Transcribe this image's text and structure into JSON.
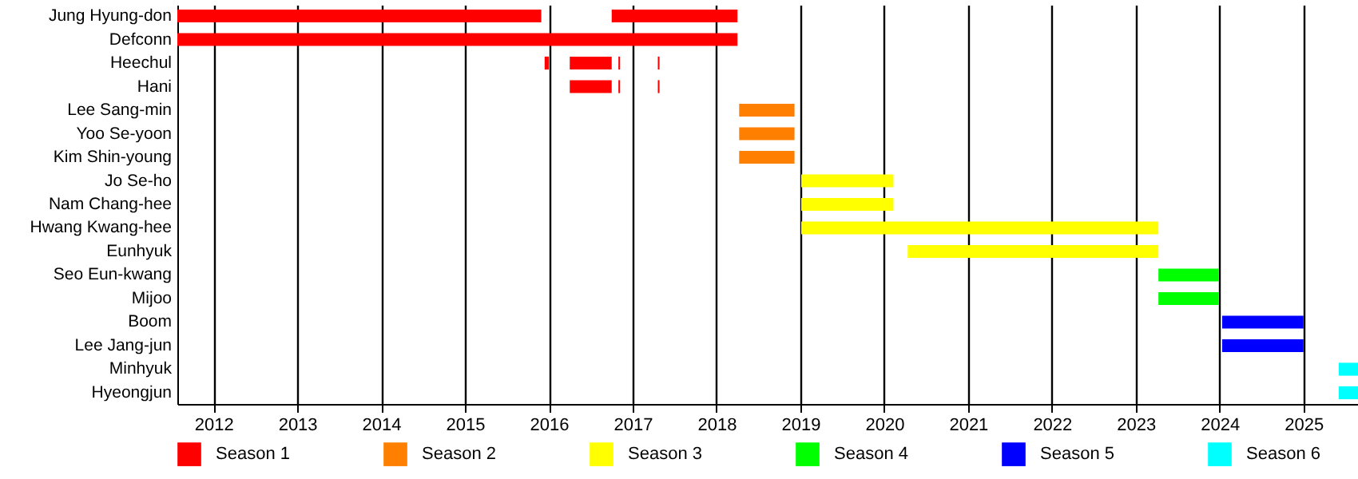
{
  "chart_data": {
    "type": "bar",
    "orientation": "horizontal",
    "categories": [
      "Jung Hyung-don",
      "Defconn",
      "Heechul",
      "Hani",
      "Lee Sang-min",
      "Yoo Se-yoon",
      "Kim Shin-young",
      "Jo Se-ho",
      "Nam Chang-hee",
      "Hwang Kwang-hee",
      "Eunhyuk",
      "Seo Eun-kwang",
      "Mijoo",
      "Boom",
      "Lee Jang-jun",
      "Minhyuk",
      "Hyeongjun"
    ],
    "series": [
      {
        "name": "Season 1",
        "color": "#ff0000",
        "base": [
          2011.57,
          2011.57,
          2016.25,
          2016.25,
          null,
          null,
          null,
          null,
          null,
          null,
          null,
          null,
          null,
          null,
          null,
          null,
          null
        ],
        "values": [
          4.34,
          6.68,
          0.5,
          0.5,
          null,
          null,
          null,
          null,
          null,
          null,
          null,
          null,
          null,
          null,
          null,
          null,
          null
        ]
      },
      {
        "color": "#ff0000",
        "base": [
          2016.75,
          null,
          2015.95,
          2016.83,
          null,
          null,
          null,
          null,
          null,
          null,
          null,
          null,
          null,
          null,
          null,
          null,
          null
        ],
        "values": [
          1.5,
          null,
          0.05,
          0.02,
          null,
          null,
          null,
          null,
          null,
          null,
          null,
          null,
          null,
          null,
          null,
          null,
          null
        ]
      },
      {
        "color": "#ff0000",
        "base": [
          null,
          null,
          2016.83,
          2017.3,
          null,
          null,
          null,
          null,
          null,
          null,
          null,
          null,
          null,
          null,
          null,
          null,
          null
        ],
        "values": [
          null,
          null,
          0.02,
          0.02,
          null,
          null,
          null,
          null,
          null,
          null,
          null,
          null,
          null,
          null,
          null,
          null,
          null
        ]
      },
      {
        "color": "#ff0000",
        "base": [
          null,
          null,
          2017.3,
          null,
          null,
          null,
          null,
          null,
          null,
          null,
          null,
          null,
          null,
          null,
          null,
          null,
          null
        ],
        "values": [
          null,
          null,
          0.02,
          null,
          null,
          null,
          null,
          null,
          null,
          null,
          null,
          null,
          null,
          null,
          null,
          null,
          null
        ]
      },
      {
        "name": "Season 2",
        "color": "#ff8000",
        "base": [
          null,
          null,
          null,
          null,
          2018.27,
          2018.27,
          2018.27,
          null,
          null,
          null,
          null,
          null,
          null,
          null,
          null,
          null,
          null
        ],
        "values": [
          null,
          null,
          null,
          null,
          0.66,
          0.66,
          0.66,
          null,
          null,
          null,
          null,
          null,
          null,
          null,
          null,
          null,
          null
        ]
      },
      {
        "name": "Season 3",
        "color": "#ffff00",
        "base": [
          null,
          null,
          null,
          null,
          null,
          null,
          null,
          2019.01,
          2019.01,
          2019.01,
          2020.28,
          null,
          null,
          null,
          null,
          null,
          null
        ],
        "values": [
          null,
          null,
          null,
          null,
          null,
          null,
          null,
          1.1,
          1.1,
          4.26,
          2.99,
          null,
          null,
          null,
          null,
          null,
          null
        ]
      },
      {
        "name": "Season 4",
        "color": "#00ff00",
        "base": [
          null,
          null,
          null,
          null,
          null,
          null,
          null,
          null,
          null,
          null,
          null,
          2023.27,
          2023.27,
          null,
          null,
          null,
          null
        ],
        "values": [
          null,
          null,
          null,
          null,
          null,
          null,
          null,
          null,
          null,
          null,
          null,
          0.72,
          0.72,
          null,
          null,
          null,
          null
        ]
      },
      {
        "name": "Season 5",
        "color": "#0000ff",
        "base": [
          null,
          null,
          null,
          null,
          null,
          null,
          null,
          null,
          null,
          null,
          null,
          null,
          null,
          2024.03,
          2024.03,
          null,
          null
        ],
        "values": [
          null,
          null,
          null,
          null,
          null,
          null,
          null,
          null,
          null,
          null,
          null,
          null,
          null,
          0.97,
          0.97,
          null,
          null
        ]
      },
      {
        "name": "Season 6",
        "color": "#00ffff",
        "base": [
          null,
          null,
          null,
          null,
          null,
          null,
          null,
          null,
          null,
          null,
          null,
          null,
          null,
          null,
          null,
          2025.42,
          2025.42
        ],
        "values": [
          null,
          null,
          null,
          null,
          null,
          null,
          null,
          null,
          null,
          null,
          null,
          null,
          null,
          null,
          null,
          0.23,
          0.23
        ]
      }
    ],
    "xlim": [
      2011.57,
      2025.65
    ],
    "xticks": [
      2012,
      2013,
      2014,
      2015,
      2016,
      2017,
      2018,
      2019,
      2020,
      2021,
      2022,
      2023,
      2024,
      2025
    ],
    "grid": "x",
    "legend": "bottom"
  }
}
